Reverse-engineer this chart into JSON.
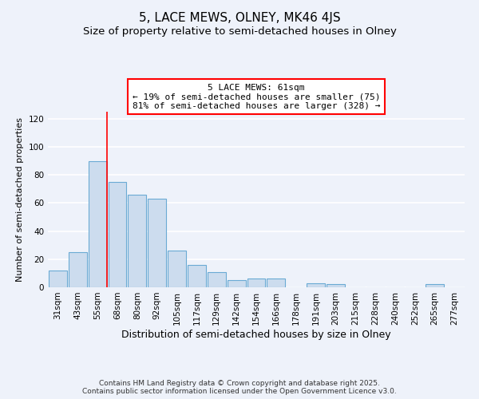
{
  "title": "5, LACE MEWS, OLNEY, MK46 4JS",
  "subtitle": "Size of property relative to semi-detached houses in Olney",
  "xlabel": "Distribution of semi-detached houses by size in Olney",
  "ylabel": "Number of semi-detached properties",
  "bar_labels": [
    "31sqm",
    "43sqm",
    "55sqm",
    "68sqm",
    "80sqm",
    "92sqm",
    "105sqm",
    "117sqm",
    "129sqm",
    "142sqm",
    "154sqm",
    "166sqm",
    "178sqm",
    "191sqm",
    "203sqm",
    "215sqm",
    "228sqm",
    "240sqm",
    "252sqm",
    "265sqm",
    "277sqm"
  ],
  "bar_heights": [
    12,
    25,
    90,
    75,
    66,
    63,
    26,
    16,
    11,
    5,
    6,
    6,
    0,
    3,
    2,
    0,
    0,
    0,
    0,
    2,
    0
  ],
  "bar_color": "#ccdcee",
  "bar_edge_color": "#6aaad4",
  "ylim": [
    0,
    125
  ],
  "yticks": [
    0,
    20,
    40,
    60,
    80,
    100,
    120
  ],
  "property_label": "5 LACE MEWS: 61sqm",
  "annotation_line1": "← 19% of semi-detached houses are smaller (75)",
  "annotation_line2": "81% of semi-detached houses are larger (328) →",
  "vline_x_index": 2.47,
  "background_color": "#eef2fa",
  "grid_color": "#ffffff",
  "footer_line1": "Contains HM Land Registry data © Crown copyright and database right 2025.",
  "footer_line2": "Contains public sector information licensed under the Open Government Licence v3.0.",
  "title_fontsize": 11,
  "subtitle_fontsize": 9.5,
  "xlabel_fontsize": 9,
  "ylabel_fontsize": 8,
  "tick_fontsize": 7.5,
  "annotation_fontsize": 8,
  "footer_fontsize": 6.5
}
